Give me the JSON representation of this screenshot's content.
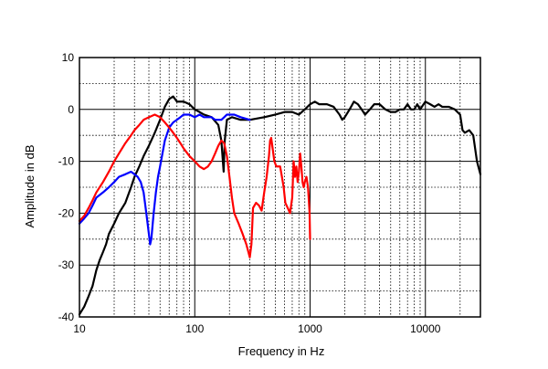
{
  "chart_data": {
    "type": "line",
    "title": "",
    "xlabel": "Frequency in Hz",
    "ylabel": "Amplitude in dB",
    "x_scale": "log",
    "xlim": [
      10,
      30000
    ],
    "ylim": [
      -40,
      10
    ],
    "x_tick_labels": [
      {
        "value": 10,
        "label": "10"
      },
      {
        "value": 100,
        "label": "100"
      },
      {
        "value": 1000,
        "label": "1000"
      },
      {
        "value": 10000,
        "label": "10000"
      }
    ],
    "y_ticks": [
      10,
      0,
      -10,
      -20,
      -30,
      -40
    ],
    "y_tick_labels": [
      "10",
      "0",
      "-10",
      "-20",
      "-30",
      "-40"
    ],
    "grid": true,
    "legend": "none",
    "series": [
      {
        "color": "#000000",
        "points": [
          [
            10,
            -39.5
          ],
          [
            11,
            -38
          ],
          [
            12,
            -36
          ],
          [
            13,
            -34
          ],
          [
            14,
            -31
          ],
          [
            15,
            -29
          ],
          [
            16,
            -27.5
          ],
          [
            17,
            -26
          ],
          [
            18,
            -24
          ],
          [
            20,
            -22
          ],
          [
            22,
            -20
          ],
          [
            25,
            -18
          ],
          [
            28,
            -15
          ],
          [
            30,
            -13
          ],
          [
            33,
            -11
          ],
          [
            36,
            -9
          ],
          [
            40,
            -7
          ],
          [
            45,
            -4.5
          ],
          [
            50,
            -2
          ],
          [
            55,
            0.5
          ],
          [
            60,
            2
          ],
          [
            65,
            2.5
          ],
          [
            70,
            1.5
          ],
          [
            80,
            1.5
          ],
          [
            90,
            1
          ],
          [
            100,
            0
          ],
          [
            110,
            -0.5
          ],
          [
            120,
            -1
          ],
          [
            140,
            -1.5
          ],
          [
            160,
            -3
          ],
          [
            170,
            -6
          ],
          [
            178,
            -12
          ],
          [
            182,
            -6
          ],
          [
            190,
            -2
          ],
          [
            210,
            -1.5
          ],
          [
            250,
            -2
          ],
          [
            300,
            -2
          ],
          [
            400,
            -1.5
          ],
          [
            500,
            -1
          ],
          [
            600,
            -0.5
          ],
          [
            700,
            -0.5
          ],
          [
            800,
            -1
          ],
          [
            900,
            0
          ],
          [
            1000,
            1
          ],
          [
            1100,
            1.5
          ],
          [
            1200,
            1
          ],
          [
            1400,
            1
          ],
          [
            1600,
            0.5
          ],
          [
            1800,
            -1
          ],
          [
            1900,
            -2
          ],
          [
            2000,
            -1.5
          ],
          [
            2200,
            0
          ],
          [
            2400,
            1.5
          ],
          [
            2600,
            1
          ],
          [
            2800,
            0
          ],
          [
            3000,
            -1
          ],
          [
            3300,
            0
          ],
          [
            3600,
            1
          ],
          [
            4000,
            1
          ],
          [
            4500,
            0
          ],
          [
            5000,
            -0.5
          ],
          [
            5500,
            -0.5
          ],
          [
            6000,
            0
          ],
          [
            6500,
            0
          ],
          [
            7000,
            1
          ],
          [
            7500,
            0
          ],
          [
            8000,
            0
          ],
          [
            8500,
            1
          ],
          [
            9000,
            0
          ],
          [
            10000,
            1.5
          ],
          [
            11000,
            1
          ],
          [
            12000,
            0.5
          ],
          [
            13000,
            1
          ],
          [
            14000,
            0.5
          ],
          [
            16000,
            0.5
          ],
          [
            18000,
            0
          ],
          [
            20000,
            -1
          ],
          [
            21000,
            -4
          ],
          [
            22000,
            -4.5
          ],
          [
            24000,
            -4
          ],
          [
            26000,
            -5
          ],
          [
            28000,
            -10
          ],
          [
            30000,
            -12.5
          ]
        ]
      },
      {
        "color": "#0000ff",
        "points": [
          [
            10,
            -22
          ],
          [
            11,
            -21
          ],
          [
            12,
            -20
          ],
          [
            13,
            -18.5
          ],
          [
            14,
            -17
          ],
          [
            16,
            -16
          ],
          [
            18,
            -15
          ],
          [
            20,
            -14
          ],
          [
            22,
            -13
          ],
          [
            25,
            -12.5
          ],
          [
            28,
            -12
          ],
          [
            30,
            -12.5
          ],
          [
            32,
            -13
          ],
          [
            34,
            -14
          ],
          [
            36,
            -16
          ],
          [
            38,
            -20
          ],
          [
            40,
            -24
          ],
          [
            41,
            -26
          ],
          [
            42,
            -25
          ],
          [
            44,
            -20
          ],
          [
            46,
            -16
          ],
          [
            48,
            -13
          ],
          [
            50,
            -11
          ],
          [
            55,
            -6
          ],
          [
            60,
            -3.5
          ],
          [
            65,
            -2.5
          ],
          [
            70,
            -2
          ],
          [
            75,
            -1.5
          ],
          [
            80,
            -1
          ],
          [
            90,
            -1
          ],
          [
            100,
            -1.5
          ],
          [
            110,
            -1
          ],
          [
            120,
            -1.5
          ],
          [
            140,
            -1.5
          ],
          [
            150,
            -2
          ],
          [
            160,
            -2
          ],
          [
            170,
            -2
          ],
          [
            180,
            -1.5
          ],
          [
            190,
            -1
          ],
          [
            200,
            -1
          ],
          [
            220,
            -1
          ],
          [
            250,
            -1.5
          ],
          [
            300,
            -2
          ]
        ]
      },
      {
        "color": "#ff0000",
        "points": [
          [
            10,
            -21.5
          ],
          [
            11,
            -20.5
          ],
          [
            12,
            -19
          ],
          [
            13,
            -17.5
          ],
          [
            14,
            -16
          ],
          [
            16,
            -14
          ],
          [
            18,
            -12
          ],
          [
            20,
            -10
          ],
          [
            22,
            -8.5
          ],
          [
            25,
            -6.5
          ],
          [
            28,
            -5
          ],
          [
            30,
            -4
          ],
          [
            33,
            -3
          ],
          [
            36,
            -2
          ],
          [
            40,
            -1.5
          ],
          [
            45,
            -1
          ],
          [
            50,
            -1.5
          ],
          [
            55,
            -2.5
          ],
          [
            60,
            -3.5
          ],
          [
            65,
            -4.5
          ],
          [
            70,
            -5.5
          ],
          [
            75,
            -6.5
          ],
          [
            80,
            -7.5
          ],
          [
            90,
            -9
          ],
          [
            100,
            -10
          ],
          [
            110,
            -11
          ],
          [
            120,
            -11.5
          ],
          [
            130,
            -11
          ],
          [
            140,
            -10
          ],
          [
            150,
            -8.5
          ],
          [
            160,
            -7
          ],
          [
            170,
            -6
          ],
          [
            180,
            -6.5
          ],
          [
            190,
            -9
          ],
          [
            200,
            -13
          ],
          [
            210,
            -17
          ],
          [
            220,
            -20
          ],
          [
            240,
            -22
          ],
          [
            260,
            -24
          ],
          [
            280,
            -26
          ],
          [
            300,
            -28.5
          ],
          [
            310,
            -26
          ],
          [
            320,
            -19
          ],
          [
            340,
            -18
          ],
          [
            360,
            -18.5
          ],
          [
            380,
            -19.5
          ],
          [
            400,
            -16
          ],
          [
            420,
            -13
          ],
          [
            440,
            -9
          ],
          [
            450,
            -6
          ],
          [
            460,
            -5.5
          ],
          [
            470,
            -7
          ],
          [
            490,
            -10
          ],
          [
            510,
            -11
          ],
          [
            530,
            -11
          ],
          [
            550,
            -11
          ],
          [
            570,
            -13
          ],
          [
            590,
            -15
          ],
          [
            610,
            -18
          ],
          [
            640,
            -19
          ],
          [
            670,
            -20
          ],
          [
            700,
            -17
          ],
          [
            720,
            -10
          ],
          [
            740,
            -13
          ],
          [
            760,
            -11
          ],
          [
            780,
            -14
          ],
          [
            800,
            -12
          ],
          [
            820,
            -8.5
          ],
          [
            840,
            -11
          ],
          [
            860,
            -14
          ],
          [
            880,
            -15
          ],
          [
            900,
            -14
          ],
          [
            930,
            -13
          ],
          [
            960,
            -15
          ],
          [
            990,
            -20
          ],
          [
            1000,
            -25
          ]
        ]
      }
    ]
  }
}
